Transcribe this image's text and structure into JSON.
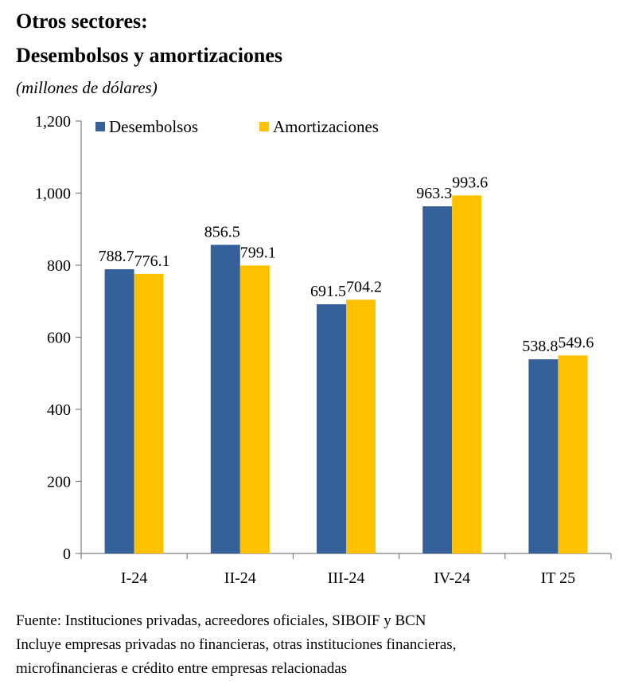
{
  "title_line1": "Otros sectores:",
  "title_line2": "Desembolsos y amortizaciones",
  "subtitle": "(millones de dólares)",
  "source_lines": [
    "Fuente:  Instituciones privadas, acreedores oficiales, SIBOIF y BCN",
    "Incluye empresas privadas no financieras, otras instituciones financieras,",
    "microfinancieras e crédito entre empresas relacionadas"
  ],
  "chart_data": {
    "type": "bar",
    "categories": [
      "I-24",
      "II-24",
      "III-24",
      "IV-24",
      "IT 25"
    ],
    "series": [
      {
        "name": "Desembolsos",
        "color": "#36609A",
        "values": [
          788.7,
          856.5,
          691.5,
          963.3,
          538.8
        ],
        "labels": [
          "788.7",
          "856.5",
          "691.5",
          "963.3",
          "538.8"
        ]
      },
      {
        "name": "Amortizaciones",
        "color": "#FFC000",
        "values": [
          776.1,
          799.1,
          704.2,
          993.6,
          549.6
        ],
        "labels": [
          "776.1",
          "799.1",
          "704.2",
          "993.6",
          "549.6"
        ]
      }
    ],
    "ylim": [
      0,
      1200
    ],
    "yticks": [
      0,
      200,
      400,
      600,
      800,
      1000,
      1200
    ],
    "ytick_labels": [
      "0",
      "200",
      "400",
      "600",
      "800",
      "1,000",
      "1,200"
    ],
    "grid": false,
    "legend": "top-left"
  }
}
